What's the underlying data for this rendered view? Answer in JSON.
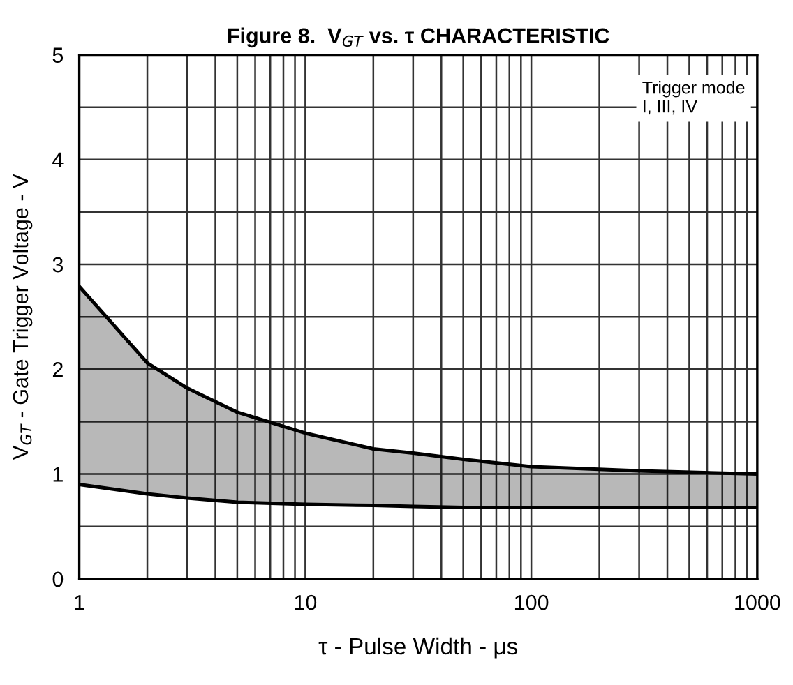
{
  "chart_data": {
    "type": "line",
    "title": "Figure 8.  V$_{GT}$ vs. τ CHARACTERISTIC",
    "xlabel": "τ - Pulse Width - μs",
    "ylabel": "V$_{GT}$ - Gate Trigger Voltage - V",
    "annotations": [
      "Trigger mode\nI, III, IV"
    ],
    "log": "x",
    "x": [
      1,
      2,
      3,
      5,
      10,
      20,
      30,
      50,
      100,
      300,
      1000
    ],
    "series": [
      {
        "color": "#000000",
        "values": [
          2.79,
          2.06,
          1.82,
          1.59,
          1.39,
          1.24,
          1.2,
          1.14,
          1.07,
          1.03,
          1.0
        ],
        "lower": [
          0.9,
          0.81,
          0.77,
          0.73,
          0.71,
          0.7,
          0.69,
          0.68,
          0.68,
          0.68,
          0.68
        ],
        "upper": [
          2.79,
          2.06,
          1.82,
          1.59,
          1.39,
          1.24,
          1.2,
          1.14,
          1.07,
          1.03,
          1.0
        ]
      },
      {
        "color": "#000000",
        "values": [
          0.9,
          0.81,
          0.77,
          0.73,
          0.71,
          0.7,
          0.69,
          0.68,
          0.68,
          0.68,
          0.68
        ]
      }
    ],
    "xlim": [
      1,
      1000
    ],
    "ylim": [
      0,
      5
    ],
    "xticks": [
      1,
      {
        "value": 2,
        "label": null
      },
      {
        "value": 3,
        "label": null
      },
      {
        "value": 4,
        "label": null
      },
      {
        "value": 5,
        "label": null
      },
      {
        "value": 6,
        "label": null
      },
      {
        "value": 7,
        "label": null
      },
      {
        "value": 8,
        "label": null
      },
      {
        "value": 9,
        "label": null
      },
      10,
      {
        "value": 20,
        "label": null
      },
      {
        "value": 30,
        "label": null
      },
      {
        "value": 40,
        "label": null
      },
      {
        "value": 50,
        "label": null
      },
      {
        "value": 60,
        "label": null
      },
      {
        "value": 70,
        "label": null
      },
      {
        "value": 80,
        "label": null
      },
      {
        "value": 90,
        "label": null
      },
      100,
      {
        "value": 200,
        "label": null
      },
      {
        "value": 300,
        "label": null
      },
      {
        "value": 400,
        "label": null
      },
      {
        "value": 500,
        "label": null
      },
      {
        "value": 600,
        "label": null
      },
      {
        "value": 700,
        "label": null
      },
      {
        "value": 800,
        "label": null
      },
      {
        "value": 900,
        "label": null
      },
      1000
    ],
    "yticks": [
      0,
      {
        "value": 0.5,
        "label": null
      },
      1,
      {
        "value": 1.5,
        "label": null
      },
      2,
      {
        "value": 2.5,
        "label": null
      },
      3,
      {
        "value": 3.5,
        "label": null
      },
      4,
      {
        "value": 4.5,
        "label": null
      },
      5
    ],
    "grid": true
  }
}
